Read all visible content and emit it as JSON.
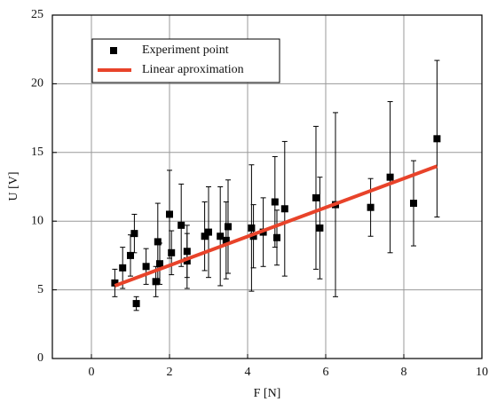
{
  "chart_data": {
    "type": "scatter",
    "xlabel": "F [N]",
    "ylabel": "U [V]",
    "xlim": [
      -1,
      10
    ],
    "ylim": [
      0,
      25
    ],
    "xticks": [
      0,
      2,
      4,
      6,
      8,
      10
    ],
    "yticks": [
      0,
      5,
      10,
      15,
      20,
      25
    ],
    "grid": true,
    "legend": "upper left",
    "series": [
      {
        "name": "Experiment point",
        "type": "scatter",
        "color": "#000000",
        "x": [
          0.6,
          0.8,
          1.0,
          1.1,
          1.15,
          1.4,
          1.65,
          1.7,
          1.75,
          2.0,
          2.05,
          2.3,
          2.45,
          2.45,
          2.9,
          3.0,
          3.3,
          3.45,
          3.5,
          4.1,
          4.15,
          4.4,
          4.7,
          4.75,
          4.95,
          5.75,
          5.85,
          6.25,
          7.15,
          7.65,
          8.25,
          8.85
        ],
        "values": [
          5.5,
          6.6,
          7.5,
          9.1,
          4.0,
          6.7,
          5.6,
          8.5,
          6.9,
          10.5,
          7.7,
          9.7,
          7.1,
          7.8,
          8.9,
          9.2,
          8.9,
          8.6,
          9.6,
          9.5,
          8.9,
          9.2,
          11.4,
          8.8,
          10.9,
          11.7,
          9.5,
          11.2,
          11.0,
          13.2,
          11.3,
          16.0
        ],
        "errors": [
          1.0,
          1.5,
          1.5,
          1.4,
          0.5,
          1.3,
          1.1,
          2.8,
          1.5,
          3.2,
          1.6,
          3.0,
          2.0,
          1.9,
          2.5,
          3.3,
          3.6,
          2.8,
          3.4,
          4.6,
          2.3,
          2.5,
          3.3,
          2.0,
          4.9,
          5.2,
          3.7,
          6.7,
          2.1,
          5.5,
          3.1,
          5.7
        ]
      },
      {
        "name": "Linear aproximation",
        "type": "line",
        "color": "#e8432a",
        "x": [
          0.6,
          8.85
        ],
        "values": [
          5.3,
          14.0
        ]
      }
    ]
  }
}
